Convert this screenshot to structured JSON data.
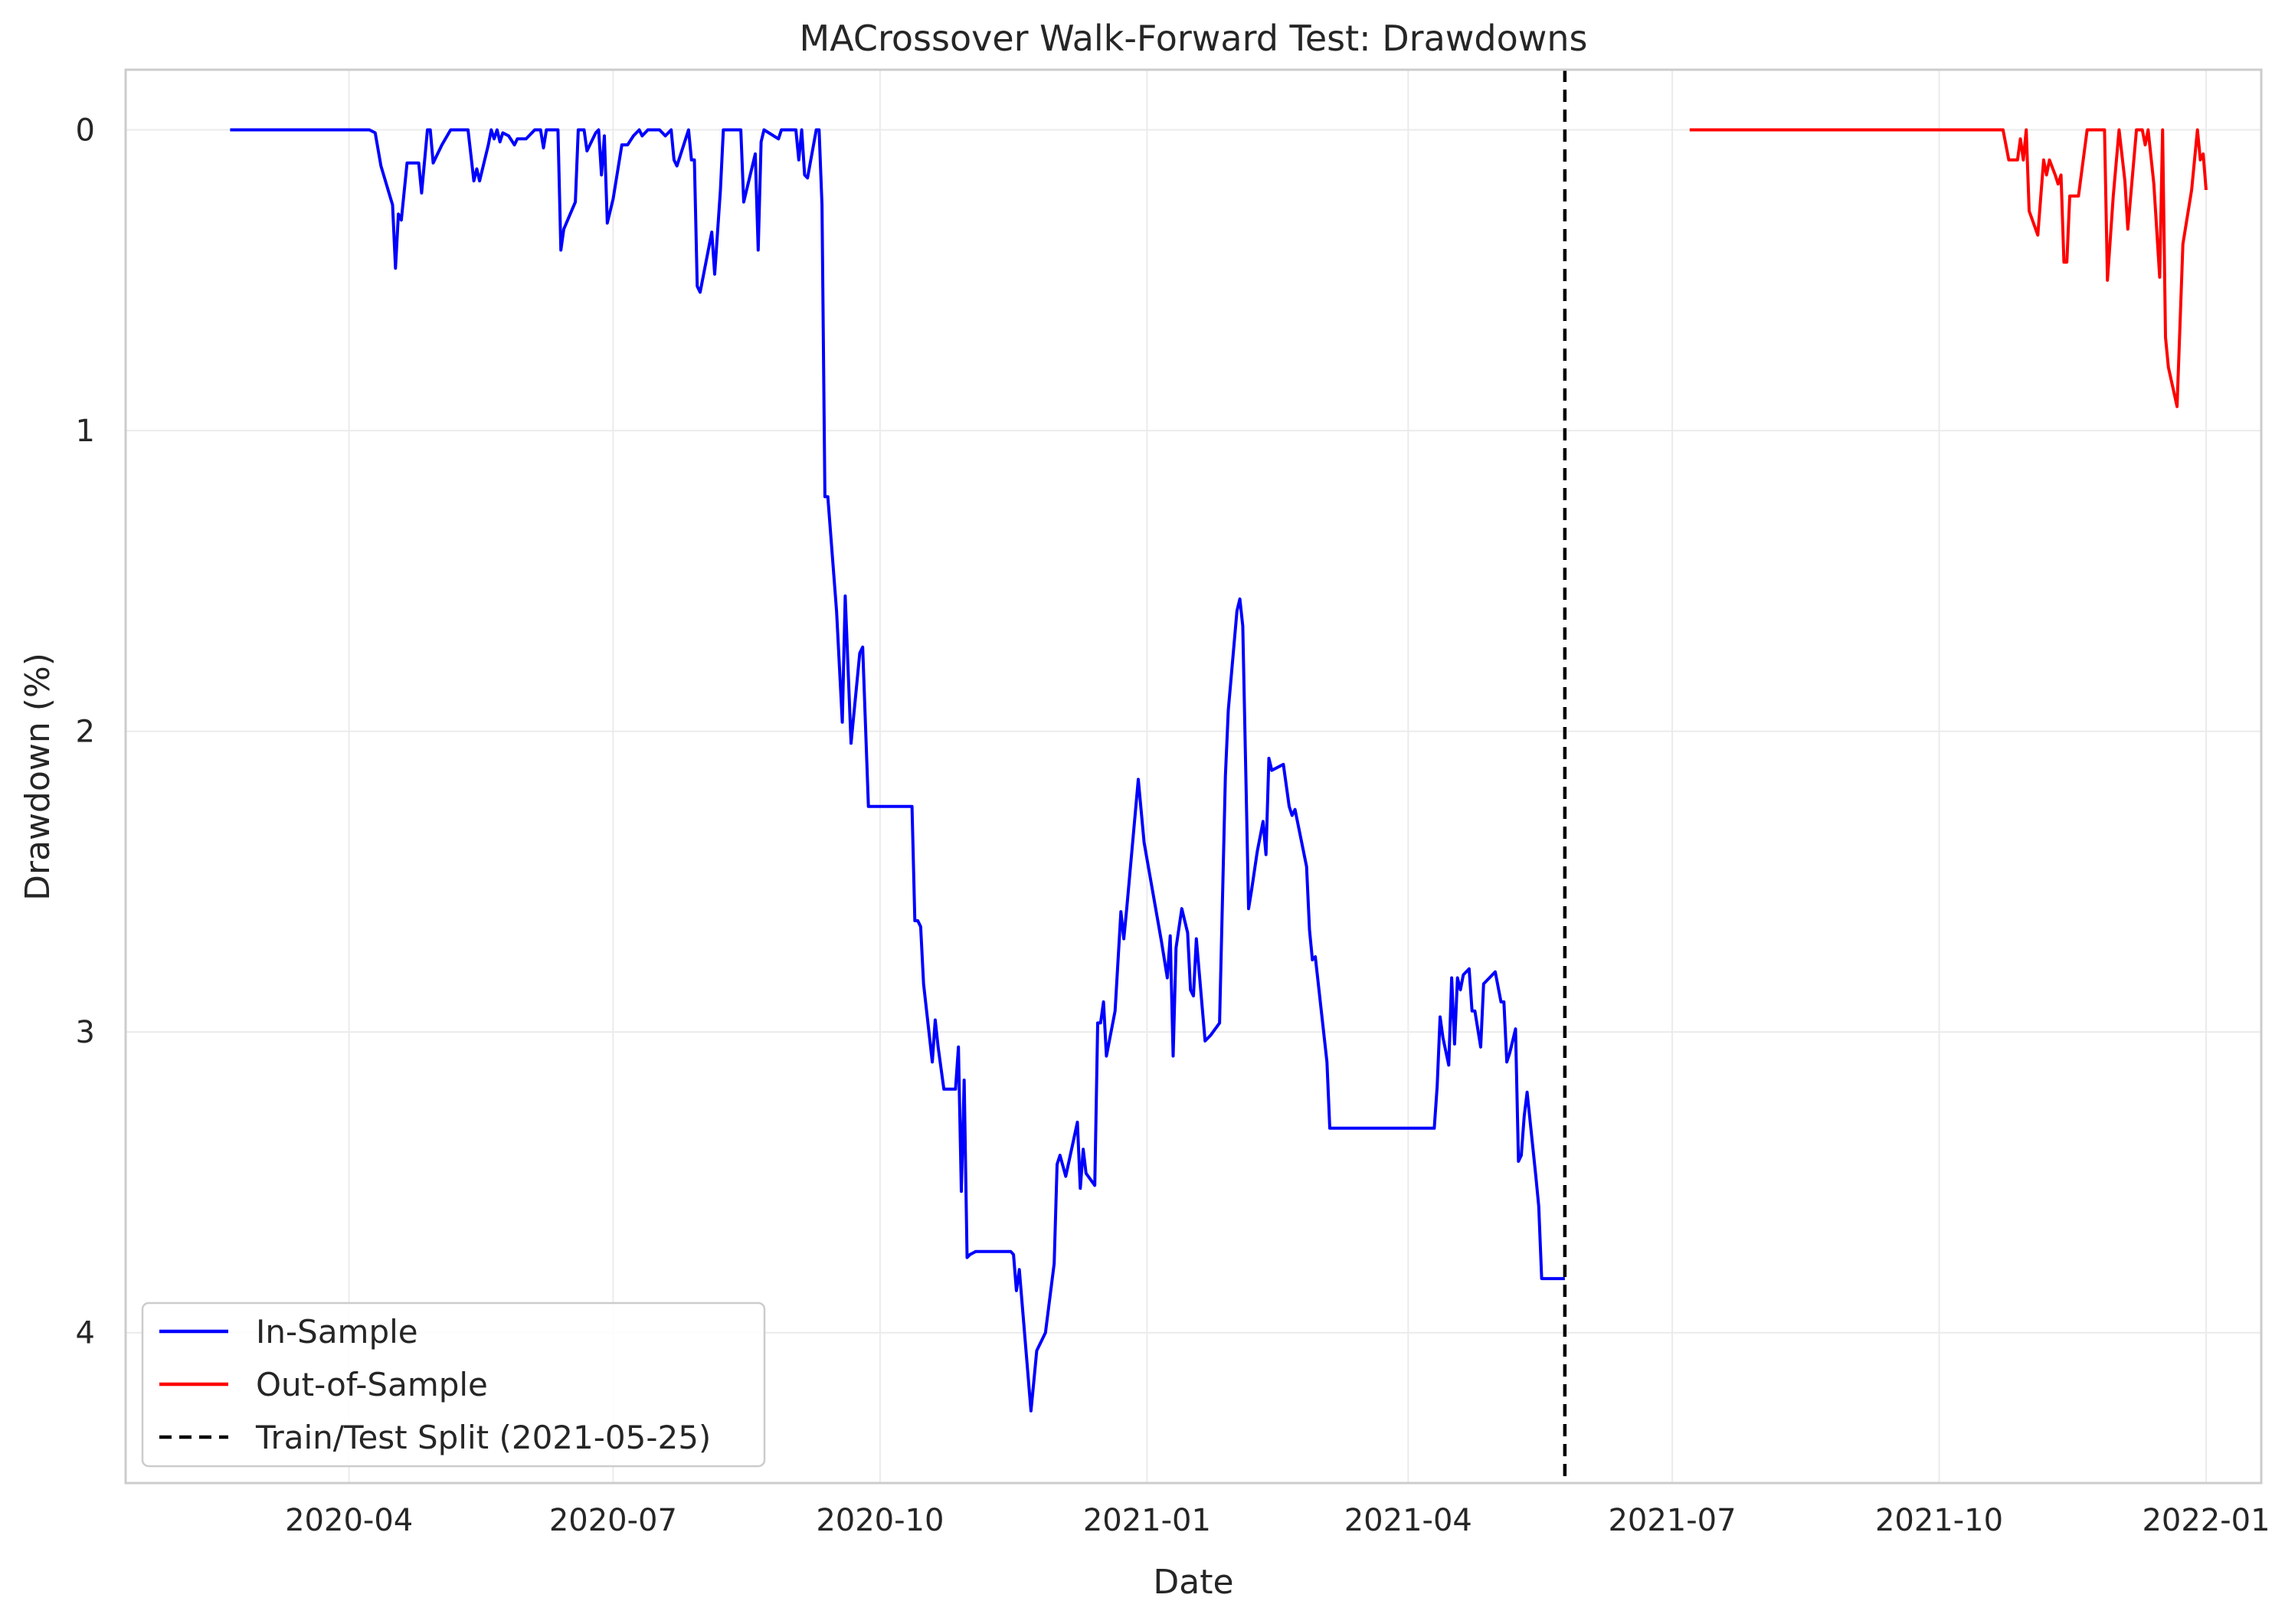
{
  "chart_data": {
    "type": "line",
    "title": "MACrossover Walk-Forward Test: Drawdowns",
    "xlabel": "Date",
    "ylabel": "Drawdown (%)",
    "y_axis_inverted": true,
    "ylim": [
      -0.2,
      4.5
    ],
    "xlim": [
      "2020-01-15",
      "2022-01-20"
    ],
    "grid": true,
    "legend_position": "lower-left",
    "x_ticks": [
      "2020-04",
      "2020-07",
      "2020-10",
      "2021-01",
      "2021-04",
      "2021-07",
      "2021-10",
      "2022-01"
    ],
    "y_ticks": [
      0,
      1,
      2,
      3,
      4
    ],
    "series": [
      {
        "name": "In-Sample",
        "color": "#0000ff",
        "points": [
          [
            "2020-02-20",
            0
          ],
          [
            "2020-03-15",
            0
          ],
          [
            "2020-04-08",
            0
          ],
          [
            "2020-04-10",
            0.01
          ],
          [
            "2020-04-12",
            0.12
          ],
          [
            "2020-04-16",
            0.25
          ],
          [
            "2020-04-17",
            0.46
          ],
          [
            "2020-04-18",
            0.28
          ],
          [
            "2020-04-19",
            0.3
          ],
          [
            "2020-04-21",
            0.11
          ],
          [
            "2020-04-25",
            0.11
          ],
          [
            "2020-04-26",
            0.21
          ],
          [
            "2020-04-28",
            0
          ],
          [
            "2020-04-29",
            0
          ],
          [
            "2020-04-30",
            0.11
          ],
          [
            "2020-05-03",
            0.05
          ],
          [
            "2020-05-06",
            0
          ],
          [
            "2020-05-12",
            0
          ],
          [
            "2020-05-14",
            0.17
          ],
          [
            "2020-05-15",
            0.13
          ],
          [
            "2020-05-16",
            0.17
          ],
          [
            "2020-05-19",
            0.05
          ],
          [
            "2020-05-20",
            0
          ],
          [
            "2020-05-21",
            0.03
          ],
          [
            "2020-05-22",
            0
          ],
          [
            "2020-05-23",
            0.04
          ],
          [
            "2020-05-24",
            0.01
          ],
          [
            "2020-05-26",
            0.02
          ],
          [
            "2020-05-28",
            0.05
          ],
          [
            "2020-05-29",
            0.03
          ],
          [
            "2020-06-01",
            0.03
          ],
          [
            "2020-06-04",
            0
          ],
          [
            "2020-06-06",
            0
          ],
          [
            "2020-06-07",
            0.06
          ],
          [
            "2020-06-08",
            0
          ],
          [
            "2020-06-12",
            0
          ],
          [
            "2020-06-13",
            0.4
          ],
          [
            "2020-06-14",
            0.33
          ],
          [
            "2020-06-18",
            0.24
          ],
          [
            "2020-06-19",
            0
          ],
          [
            "2020-06-21",
            0
          ],
          [
            "2020-06-22",
            0.07
          ],
          [
            "2020-06-25",
            0.01
          ],
          [
            "2020-06-26",
            0
          ],
          [
            "2020-06-27",
            0.15
          ],
          [
            "2020-06-28",
            0.02
          ],
          [
            "2020-06-29",
            0.31
          ],
          [
            "2020-07-01",
            0.23
          ],
          [
            "2020-07-04",
            0.05
          ],
          [
            "2020-07-06",
            0.05
          ],
          [
            "2020-07-08",
            0.02
          ],
          [
            "2020-07-10",
            0
          ],
          [
            "2020-07-11",
            0.02
          ],
          [
            "2020-07-13",
            0
          ],
          [
            "2020-07-17",
            0
          ],
          [
            "2020-07-19",
            0.02
          ],
          [
            "2020-07-21",
            0
          ],
          [
            "2020-07-22",
            0.1
          ],
          [
            "2020-07-23",
            0.12
          ],
          [
            "2020-07-27",
            0
          ],
          [
            "2020-07-28",
            0.1
          ],
          [
            "2020-07-29",
            0.1
          ],
          [
            "2020-07-30",
            0.52
          ],
          [
            "2020-07-31",
            0.54
          ],
          [
            "2020-08-04",
            0.34
          ],
          [
            "2020-08-05",
            0.48
          ],
          [
            "2020-08-07",
            0.2
          ],
          [
            "2020-08-08",
            0
          ],
          [
            "2020-08-14",
            0
          ],
          [
            "2020-08-15",
            0.24
          ],
          [
            "2020-08-19",
            0.08
          ],
          [
            "2020-08-20",
            0.4
          ],
          [
            "2020-08-21",
            0.04
          ],
          [
            "2020-08-22",
            0
          ],
          [
            "2020-08-27",
            0.03
          ],
          [
            "2020-08-28",
            0
          ],
          [
            "2020-09-02",
            0
          ],
          [
            "2020-09-03",
            0.1
          ],
          [
            "2020-09-04",
            0
          ],
          [
            "2020-09-05",
            0.15
          ],
          [
            "2020-09-06",
            0.16
          ],
          [
            "2020-09-09",
            0
          ],
          [
            "2020-09-10",
            0
          ],
          [
            "2020-09-11",
            0.25
          ],
          [
            "2020-09-12",
            1.22
          ],
          [
            "2020-09-13",
            1.22
          ],
          [
            "2020-09-16",
            1.6
          ],
          [
            "2020-09-18",
            1.97
          ],
          [
            "2020-09-19",
            1.55
          ],
          [
            "2020-09-21",
            2.04
          ],
          [
            "2020-09-24",
            1.74
          ],
          [
            "2020-09-25",
            1.72
          ],
          [
            "2020-09-27",
            2.25
          ],
          [
            "2020-10-01",
            2.25
          ],
          [
            "2020-10-10",
            2.25
          ],
          [
            "2020-10-12",
            2.25
          ],
          [
            "2020-10-13",
            2.63
          ],
          [
            "2020-10-14",
            2.63
          ],
          [
            "2020-10-15",
            2.65
          ],
          [
            "2020-10-16",
            2.84
          ],
          [
            "2020-10-19",
            3.1
          ],
          [
            "2020-10-20",
            2.96
          ],
          [
            "2020-10-21",
            3.05
          ],
          [
            "2020-10-23",
            3.19
          ],
          [
            "2020-10-25",
            3.19
          ],
          [
            "2020-10-27",
            3.19
          ],
          [
            "2020-10-28",
            3.05
          ],
          [
            "2020-10-29",
            3.53
          ],
          [
            "2020-10-30",
            3.16
          ],
          [
            "2020-10-31",
            3.75
          ],
          [
            "2020-11-01",
            3.74
          ],
          [
            "2020-11-03",
            3.73
          ],
          [
            "2020-11-10",
            3.73
          ],
          [
            "2020-11-15",
            3.73
          ],
          [
            "2020-11-16",
            3.74
          ],
          [
            "2020-11-17",
            3.86
          ],
          [
            "2020-11-18",
            3.79
          ],
          [
            "2020-11-22",
            4.26
          ],
          [
            "2020-11-23",
            4.16
          ],
          [
            "2020-11-24",
            4.06
          ],
          [
            "2020-11-27",
            4.0
          ],
          [
            "2020-11-30",
            3.77
          ],
          [
            "2020-12-01",
            3.44
          ],
          [
            "2020-12-02",
            3.41
          ],
          [
            "2020-12-04",
            3.48
          ],
          [
            "2020-12-06",
            3.39
          ],
          [
            "2020-12-08",
            3.3
          ],
          [
            "2020-12-09",
            3.52
          ],
          [
            "2020-12-10",
            3.39
          ],
          [
            "2020-12-11",
            3.47
          ],
          [
            "2020-12-14",
            3.51
          ],
          [
            "2020-12-15",
            2.97
          ],
          [
            "2020-12-16",
            2.97
          ],
          [
            "2020-12-17",
            2.9
          ],
          [
            "2020-12-18",
            3.08
          ],
          [
            "2020-12-21",
            2.93
          ],
          [
            "2020-12-23",
            2.6
          ],
          [
            "2020-12-24",
            2.69
          ],
          [
            "2020-12-25",
            2.59
          ],
          [
            "2020-12-29",
            2.16
          ],
          [
            "2020-12-31",
            2.37
          ],
          [
            "2021-01-06",
            2.7
          ],
          [
            "2021-01-08",
            2.82
          ],
          [
            "2021-01-09",
            2.68
          ],
          [
            "2021-01-10",
            3.08
          ],
          [
            "2021-01-11",
            2.72
          ],
          [
            "2021-01-13",
            2.59
          ],
          [
            "2021-01-15",
            2.67
          ],
          [
            "2021-01-16",
            2.86
          ],
          [
            "2021-01-17",
            2.88
          ],
          [
            "2021-01-18",
            2.69
          ],
          [
            "2021-01-21",
            3.03
          ],
          [
            "2021-01-23",
            3.01
          ],
          [
            "2021-01-26",
            2.97
          ],
          [
            "2021-01-28",
            2.15
          ],
          [
            "2021-01-29",
            1.93
          ],
          [
            "2021-02-01",
            1.6
          ],
          [
            "2021-02-02",
            1.56
          ],
          [
            "2021-02-03",
            1.65
          ],
          [
            "2021-02-05",
            2.59
          ],
          [
            "2021-02-06",
            2.53
          ],
          [
            "2021-02-08",
            2.4
          ],
          [
            "2021-02-10",
            2.3
          ],
          [
            "2021-02-11",
            2.41
          ],
          [
            "2021-02-12",
            2.09
          ],
          [
            "2021-02-13",
            2.13
          ],
          [
            "2021-02-17",
            2.11
          ],
          [
            "2021-02-19",
            2.25
          ],
          [
            "2021-02-20",
            2.28
          ],
          [
            "2021-02-21",
            2.26
          ],
          [
            "2021-02-25",
            2.45
          ],
          [
            "2021-02-26",
            2.66
          ],
          [
            "2021-02-27",
            2.76
          ],
          [
            "2021-02-28",
            2.75
          ],
          [
            "2021-03-04",
            3.1
          ],
          [
            "2021-03-05",
            3.32
          ],
          [
            "2021-03-15",
            3.32
          ],
          [
            "2021-04-01",
            3.32
          ],
          [
            "2021-04-10",
            3.32
          ],
          [
            "2021-04-11",
            3.18
          ],
          [
            "2021-04-12",
            2.95
          ],
          [
            "2021-04-13",
            3.02
          ],
          [
            "2021-04-15",
            3.11
          ],
          [
            "2021-04-16",
            2.82
          ],
          [
            "2021-04-17",
            3.04
          ],
          [
            "2021-04-18",
            2.82
          ],
          [
            "2021-04-19",
            2.86
          ],
          [
            "2021-04-20",
            2.81
          ],
          [
            "2021-04-22",
            2.79
          ],
          [
            "2021-04-23",
            2.93
          ],
          [
            "2021-04-24",
            2.93
          ],
          [
            "2021-04-26",
            3.05
          ],
          [
            "2021-04-27",
            2.84
          ],
          [
            "2021-04-30",
            2.81
          ],
          [
            "2021-05-01",
            2.8
          ],
          [
            "2021-05-03",
            2.9
          ],
          [
            "2021-05-04",
            2.9
          ],
          [
            "2021-05-05",
            3.1
          ],
          [
            "2021-05-06",
            3.07
          ],
          [
            "2021-05-08",
            2.99
          ],
          [
            "2021-05-09",
            3.43
          ],
          [
            "2021-05-10",
            3.41
          ],
          [
            "2021-05-11",
            3.28
          ],
          [
            "2021-05-12",
            3.2
          ],
          [
            "2021-05-15",
            3.48
          ],
          [
            "2021-05-16",
            3.58
          ],
          [
            "2021-05-17",
            3.82
          ],
          [
            "2021-05-20",
            3.82
          ],
          [
            "2021-05-25",
            3.82
          ]
        ]
      },
      {
        "name": "Out-of-Sample",
        "color": "#ff0000",
        "points": [
          [
            "2021-07-07",
            0
          ],
          [
            "2021-08-15",
            0
          ],
          [
            "2021-09-20",
            0
          ],
          [
            "2021-10-22",
            0
          ],
          [
            "2021-10-23",
            0
          ],
          [
            "2021-10-25",
            0.1
          ],
          [
            "2021-10-28",
            0.1
          ],
          [
            "2021-10-29",
            0.03
          ],
          [
            "2021-10-30",
            0.1
          ],
          [
            "2021-10-31",
            0
          ],
          [
            "2021-11-01",
            0.27
          ],
          [
            "2021-11-04",
            0.35
          ],
          [
            "2021-11-06",
            0.1
          ],
          [
            "2021-11-07",
            0.15
          ],
          [
            "2021-11-08",
            0.1
          ],
          [
            "2021-11-10",
            0.15
          ],
          [
            "2021-11-11",
            0.18
          ],
          [
            "2021-11-12",
            0.15
          ],
          [
            "2021-11-13",
            0.44
          ],
          [
            "2021-11-14",
            0.44
          ],
          [
            "2021-11-15",
            0.22
          ],
          [
            "2021-11-18",
            0.22
          ],
          [
            "2021-11-21",
            0
          ],
          [
            "2021-11-27",
            0
          ],
          [
            "2021-11-28",
            0.5
          ],
          [
            "2021-11-30",
            0.22
          ],
          [
            "2021-12-02",
            0
          ],
          [
            "2021-12-04",
            0.17
          ],
          [
            "2021-12-05",
            0.33
          ],
          [
            "2021-12-08",
            0
          ],
          [
            "2021-12-10",
            0
          ],
          [
            "2021-12-11",
            0.05
          ],
          [
            "2021-12-12",
            0
          ],
          [
            "2021-12-14",
            0.18
          ],
          [
            "2021-12-16",
            0.49
          ],
          [
            "2021-12-17",
            0
          ],
          [
            "2021-12-18",
            0.69
          ],
          [
            "2021-12-19",
            0.79
          ],
          [
            "2021-12-22",
            0.92
          ],
          [
            "2021-12-24",
            0.38
          ],
          [
            "2021-12-27",
            0.2
          ],
          [
            "2021-12-29",
            0
          ],
          [
            "2021-12-30",
            0.1
          ],
          [
            "2021-12-31",
            0.08
          ],
          [
            "2022-01-01",
            0.2
          ]
        ]
      },
      {
        "name": "Train/Test Split (2021-05-25)",
        "color": "#000000",
        "style": "dashed",
        "vertical_at": "2021-05-25"
      }
    ]
  }
}
